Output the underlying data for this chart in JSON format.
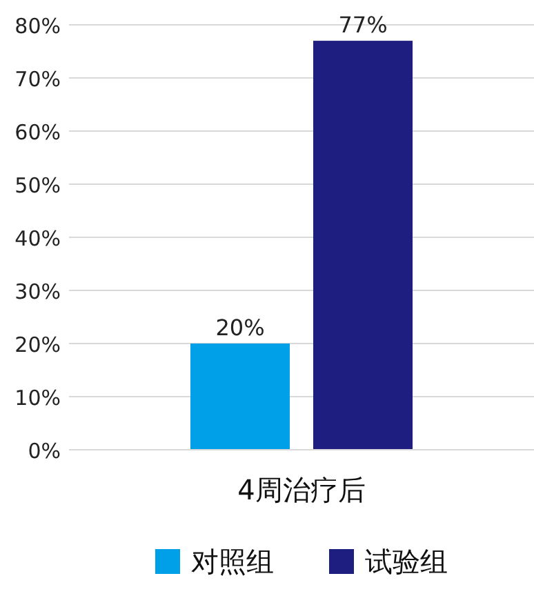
{
  "chart_data": {
    "type": "bar",
    "categories": [
      "4周治疗后"
    ],
    "series": [
      {
        "name": "对照组",
        "color": "#00a0e9",
        "values": [
          20
        ],
        "value_labels": [
          "20%"
        ]
      },
      {
        "name": "试验组",
        "color": "#1e1e80",
        "values": [
          77
        ],
        "value_labels": [
          "77%"
        ]
      }
    ],
    "ylim": [
      0,
      80
    ],
    "yticks": [
      {
        "value": 0,
        "label": "0%"
      },
      {
        "value": 10,
        "label": "10%"
      },
      {
        "value": 20,
        "label": "20%"
      },
      {
        "value": 30,
        "label": "30%"
      },
      {
        "value": 40,
        "label": "40%"
      },
      {
        "value": 50,
        "label": "50%"
      },
      {
        "value": 60,
        "label": "60%"
      },
      {
        "value": 70,
        "label": "70%"
      },
      {
        "value": 80,
        "label": "80%"
      }
    ],
    "grid": "y",
    "legend": "bottom"
  }
}
